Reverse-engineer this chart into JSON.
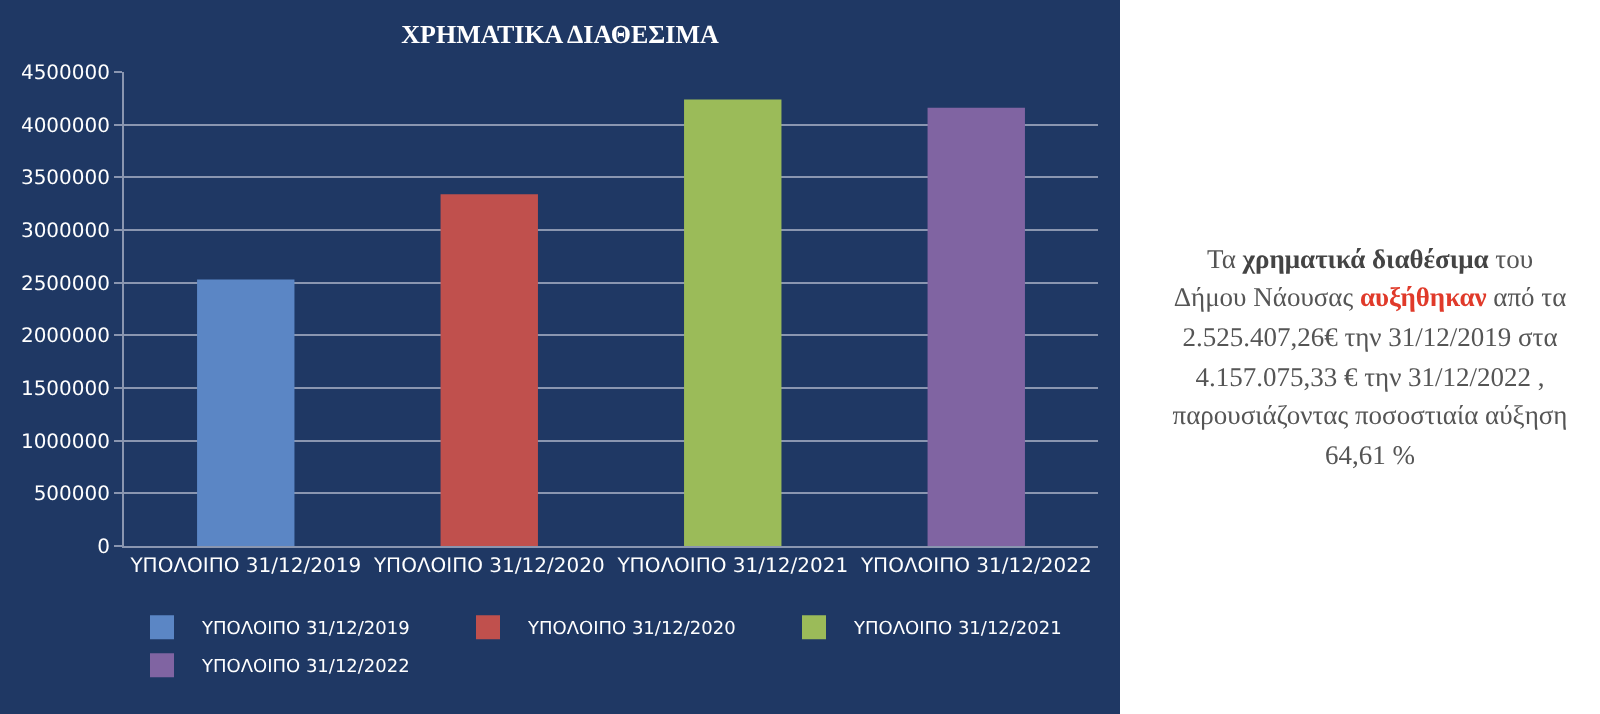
{
  "chart_data": {
    "type": "bar",
    "title": "ΧΡΗΜΑΤΙΚΑ ΔΙΑΘΕΣΙΜΑ",
    "categories": [
      "ΥΠΟΛΟΙΠΟ 31/12/2019",
      "ΥΠΟΛΟΙΠΟ 31/12/2020",
      "ΥΠΟΛΟΙΠΟ 31/12/2021",
      "ΥΠΟΛΟΙΠΟ 31/12/2022"
    ],
    "series": [
      {
        "name": "ΥΠΟΛΟΙΠΟ 31/12/2019",
        "color": "#5b86c5",
        "values": [
          2530000,
          null,
          null,
          null
        ]
      },
      {
        "name": "ΥΠΟΛΟΙΠΟ 31/12/2020",
        "color": "#c0504d",
        "values": [
          null,
          3340000,
          null,
          null
        ]
      },
      {
        "name": "ΥΠΟΛΟΙΠΟ 31/12/2021",
        "color": "#9bbb59",
        "values": [
          null,
          null,
          4240000,
          null
        ]
      },
      {
        "name": "ΥΠΟΛΟΙΠΟ 31/12/2022",
        "color": "#8064a2",
        "values": [
          null,
          null,
          null,
          4160000
        ]
      }
    ],
    "ylim": [
      0,
      4500000
    ],
    "yticks": [
      0,
      500000,
      1000000,
      1500000,
      2000000,
      2500000,
      3000000,
      3500000,
      4000000,
      4500000
    ],
    "grid": "y",
    "legend": "bottom",
    "annotations": [
      "Τα ",
      "χρηματικά διαθέσιμα",
      " του Δήμου Νάουσας ",
      "αυξήθηκαν",
      " από τα 2.525.407,26€ την 31/12/2019 στα 4.157.075,33 € την 31/12/2022 , παρουσιάζοντας ποσοστιαία  αύξηση 64,61 %"
    ]
  }
}
